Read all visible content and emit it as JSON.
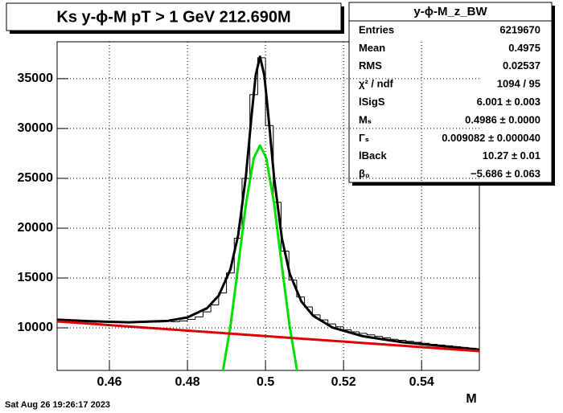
{
  "chart_data": {
    "type": "histogram",
    "title": "Ks y-ϕ-M pT > 1 GeV  212.690M",
    "x_label": "M",
    "timestamp": "Sat Aug 26 19:26:17 2023",
    "color": "#000000",
    "bins": [
      0.448,
      0.45,
      0.452,
      0.454,
      0.456,
      0.458,
      0.46,
      0.462,
      0.464,
      0.466,
      0.468,
      0.47,
      0.472,
      0.474,
      0.476,
      0.478,
      0.48,
      0.482,
      0.484,
      0.486,
      0.488,
      0.49,
      0.492,
      0.494,
      0.496,
      0.498,
      0.5,
      0.502,
      0.504,
      0.506,
      0.508,
      0.51,
      0.512,
      0.514,
      0.516,
      0.518,
      0.52,
      0.522,
      0.524,
      0.526,
      0.528,
      0.53,
      0.532,
      0.534,
      0.536,
      0.538,
      0.54,
      0.542,
      0.544,
      0.546,
      0.548,
      0.55,
      0.552,
      0.554
    ],
    "values": [
      10770,
      10730,
      10700,
      10660,
      10630,
      10600,
      10580,
      10560,
      10550,
      10550,
      10560,
      10580,
      10600,
      10650,
      10620,
      10700,
      10850,
      11100,
      11600,
      12300,
      13500,
      15500,
      19000,
      25000,
      33400,
      37100,
      30300,
      22600,
      17700,
      14800,
      13100,
      12100,
      11300,
      10800,
      10400,
      10100,
      9800,
      9600,
      9450,
      9300,
      9150,
      9000,
      8850,
      8750,
      8650,
      8550,
      8450,
      8350,
      8280,
      8200,
      8120,
      8040,
      7960
    ],
    "fits": [
      {
        "color": "#000000",
        "x": [
          0.4466,
          0.455,
          0.465,
          0.475,
          0.48,
          0.485,
          0.488,
          0.491,
          0.493,
          0.495,
          0.4965,
          0.4975,
          0.4986,
          0.4997,
          0.5007,
          0.5022,
          0.5042,
          0.5062,
          0.5092,
          0.5122,
          0.5172,
          0.525,
          0.535,
          0.5548
        ],
        "values": [
          10821,
          10663,
          10557,
          10701,
          11050,
          11969,
          13224,
          15854,
          19290,
          25285,
          31553,
          35392,
          37200,
          35332,
          31437,
          25087,
          18982,
          15434,
          12640,
          11219,
          10024,
          9156,
          8565,
          7812
        ]
      },
      {
        "color": "#00e000",
        "x": [
          0.4891,
          0.491,
          0.493,
          0.495,
          0.497,
          0.4986,
          0.5002,
          0.5022,
          0.5042,
          0.5062,
          0.5081
        ],
        "values": [
          5680,
          10130,
          16200,
          22470,
          27040,
          28300,
          27040,
          22470,
          16200,
          10130,
          5680
        ]
      },
      {
        "color": "#e00000",
        "x": [
          0.4466,
          0.5548
        ],
        "values": [
          10645,
          7661
        ]
      }
    ],
    "xlim": [
      0.4466,
      0.5548
    ],
    "ylim": [
      5730,
      38700
    ],
    "xticks": [
      0.46,
      0.48,
      0.5,
      0.52,
      0.54
    ],
    "yticks": [
      10000,
      15000,
      20000,
      25000,
      30000,
      35000
    ],
    "grid": true,
    "stats": {
      "title": "y-ϕ-M_z_BW",
      "rows": [
        {
          "label": "Entries",
          "value": "6219670"
        },
        {
          "label": "Mean",
          "value": "0.4975"
        },
        {
          "label": "RMS",
          "value": "0.02537"
        },
        {
          "label": "χ² / ndf",
          "value": "1094 / 95"
        },
        {
          "label": "lSigS",
          "value": "6.001 ± 0.003"
        },
        {
          "label": "Mₛ",
          "value": "0.4986 ± 0.0000"
        },
        {
          "label": "Γₛ",
          "value": "0.009082 ± 0.000040"
        },
        {
          "label": "lBack",
          "value": "10.27 ± 0.01"
        },
        {
          "label": "β₀",
          "value": "−5.686 ± 0.063"
        }
      ]
    }
  }
}
